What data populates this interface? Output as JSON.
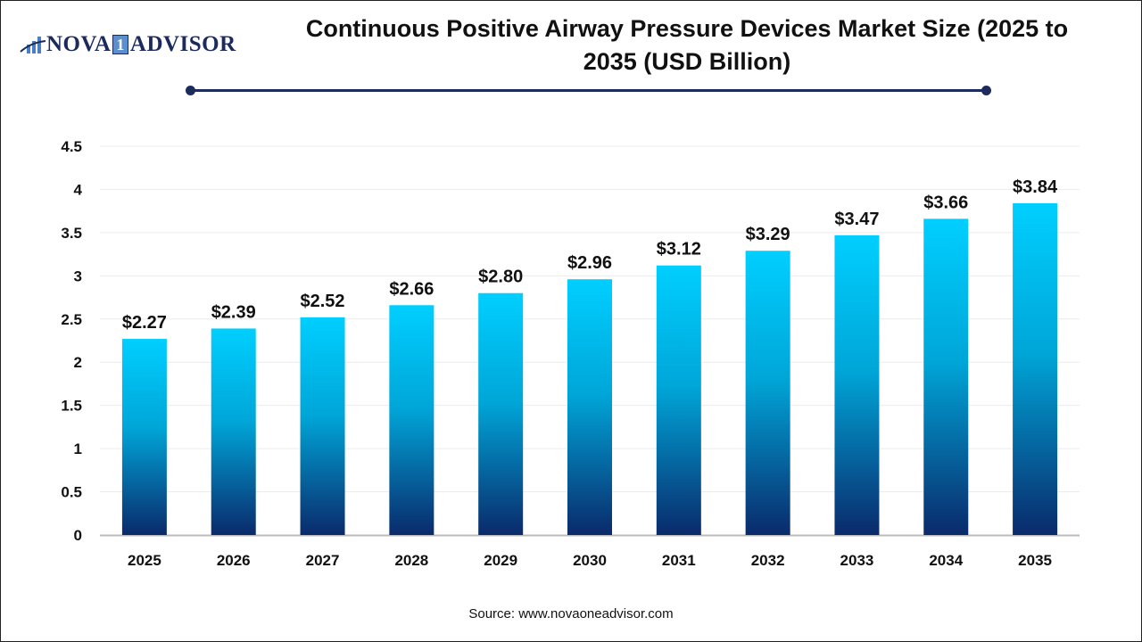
{
  "logo": {
    "text_left": "NOVA",
    "text_mid": "1",
    "text_right": "ADVISOR"
  },
  "title": "Continuous Positive Airway Pressure Devices Market Size (2025 to 2035 (USD Billion)",
  "source": "Source: www.novaoneadvisor.com",
  "colors": {
    "bar_top": "#00cfff",
    "bar_bottom": "#0a2a6b",
    "title_line": "#1c2b5e"
  },
  "chart_data": {
    "type": "bar",
    "title": "Continuous Positive Airway Pressure Devices Market Size (2025 to 2035 (USD Billion)",
    "xlabel": "",
    "ylabel": "",
    "categories": [
      "2025",
      "2026",
      "2027",
      "2028",
      "2029",
      "2030",
      "2031",
      "2032",
      "2033",
      "2034",
      "2035"
    ],
    "values": [
      2.27,
      2.39,
      2.52,
      2.66,
      2.8,
      2.96,
      3.12,
      3.29,
      3.47,
      3.66,
      3.84
    ],
    "data_labels": [
      "$2.27",
      "$2.39",
      "$2.52",
      "$2.66",
      "$2.80",
      "$2.96",
      "$3.12",
      "$3.29",
      "$3.47",
      "$3.66",
      "$3.84"
    ],
    "ylim": [
      0,
      4.5
    ],
    "yticks": [
      "0",
      "0.5",
      "1",
      "1.5",
      "2",
      "2.5",
      "3",
      "3.5",
      "4",
      "4.5"
    ],
    "grid": true,
    "legend": "none"
  }
}
